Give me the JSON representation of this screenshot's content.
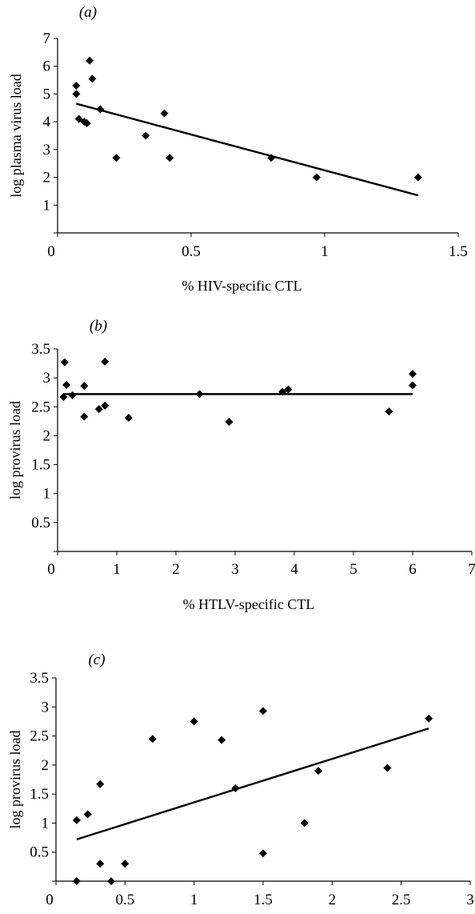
{
  "chart_data": [
    {
      "type": "scatter",
      "panel_label": "(a)",
      "xlabel": "% HIV-specific CTL",
      "ylabel": "log plasma virus load",
      "xlim": [
        0,
        1.5
      ],
      "ylim": [
        0,
        7
      ],
      "x_ticks": [
        "0",
        "0.5",
        "1",
        "1.5"
      ],
      "y_ticks": [
        "1",
        "2",
        "3",
        "4",
        "5",
        "6",
        "7"
      ],
      "grid": false,
      "legend": "none",
      "points": [
        {
          "x": 0.07,
          "y": 5.3
        },
        {
          "x": 0.07,
          "y": 5.0
        },
        {
          "x": 0.08,
          "y": 4.1
        },
        {
          "x": 0.1,
          "y": 4.0
        },
        {
          "x": 0.11,
          "y": 3.95
        },
        {
          "x": 0.12,
          "y": 6.2
        },
        {
          "x": 0.13,
          "y": 5.55
        },
        {
          "x": 0.16,
          "y": 4.45
        },
        {
          "x": 0.22,
          "y": 2.7
        },
        {
          "x": 0.33,
          "y": 3.5
        },
        {
          "x": 0.4,
          "y": 4.3
        },
        {
          "x": 0.42,
          "y": 2.7
        },
        {
          "x": 0.8,
          "y": 2.7
        },
        {
          "x": 0.97,
          "y": 2.0
        },
        {
          "x": 1.35,
          "y": 2.0
        }
      ],
      "trendline": {
        "x": [
          0.07,
          1.35
        ],
        "y": [
          4.65,
          1.35
        ]
      }
    },
    {
      "type": "scatter",
      "panel_label": "(b)",
      "xlabel": "% HTLV-specific CTL",
      "ylabel": "log provirus load",
      "xlim": [
        0,
        7
      ],
      "ylim": [
        0,
        3.5
      ],
      "x_ticks": [
        "0",
        "1",
        "2",
        "3",
        "4",
        "5",
        "6",
        "7"
      ],
      "y_ticks": [
        "0.5",
        "1",
        "1.5",
        "2",
        "2.5",
        "3",
        "3.5"
      ],
      "grid": false,
      "legend": "none",
      "points": [
        {
          "x": 0.1,
          "y": 2.67
        },
        {
          "x": 0.12,
          "y": 3.27
        },
        {
          "x": 0.15,
          "y": 2.88
        },
        {
          "x": 0.25,
          "y": 2.7
        },
        {
          "x": 0.45,
          "y": 2.86
        },
        {
          "x": 0.45,
          "y": 2.33
        },
        {
          "x": 0.7,
          "y": 2.46
        },
        {
          "x": 0.8,
          "y": 3.28
        },
        {
          "x": 0.8,
          "y": 2.52
        },
        {
          "x": 1.2,
          "y": 2.31
        },
        {
          "x": 2.4,
          "y": 2.72
        },
        {
          "x": 2.9,
          "y": 2.24
        },
        {
          "x": 3.8,
          "y": 2.76
        },
        {
          "x": 3.9,
          "y": 2.8
        },
        {
          "x": 5.6,
          "y": 2.42
        },
        {
          "x": 6.0,
          "y": 3.07
        },
        {
          "x": 6.0,
          "y": 2.87
        }
      ],
      "trendline": {
        "x": [
          0.1,
          6.0
        ],
        "y": [
          2.72,
          2.72
        ]
      }
    },
    {
      "type": "scatter",
      "panel_label": "(c)",
      "xlabel": "% HTLV-specific CTL",
      "ylabel": "log provirus load",
      "xlim": [
        0,
        3
      ],
      "ylim": [
        0,
        3.5
      ],
      "x_ticks": [
        "0",
        "0.5",
        "1",
        "1.5",
        "2",
        "2.5",
        "3"
      ],
      "y_ticks": [
        "0.5",
        "1",
        "1.5",
        "2",
        "2.5",
        "3",
        "3.5"
      ],
      "grid": false,
      "legend": "none",
      "points": [
        {
          "x": 0.15,
          "y": 1.05
        },
        {
          "x": 0.15,
          "y": 0.0
        },
        {
          "x": 0.23,
          "y": 1.15
        },
        {
          "x": 0.32,
          "y": 1.67
        },
        {
          "x": 0.32,
          "y": 0.3
        },
        {
          "x": 0.4,
          "y": 0.0
        },
        {
          "x": 0.5,
          "y": 0.3
        },
        {
          "x": 0.7,
          "y": 2.45
        },
        {
          "x": 1.0,
          "y": 2.75
        },
        {
          "x": 1.2,
          "y": 2.43
        },
        {
          "x": 1.3,
          "y": 1.6
        },
        {
          "x": 1.5,
          "y": 2.93
        },
        {
          "x": 1.5,
          "y": 0.48
        },
        {
          "x": 1.8,
          "y": 1.0
        },
        {
          "x": 1.9,
          "y": 1.9
        },
        {
          "x": 2.4,
          "y": 1.95
        },
        {
          "x": 2.7,
          "y": 2.8
        }
      ],
      "trendline": {
        "x": [
          0.15,
          2.7
        ],
        "y": [
          0.72,
          2.63
        ]
      }
    }
  ]
}
